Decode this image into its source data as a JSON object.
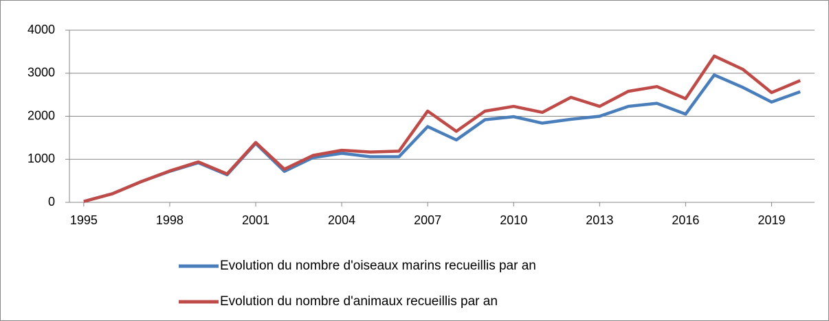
{
  "chart_data": {
    "type": "line",
    "x": [
      1995,
      1996,
      1997,
      1998,
      1999,
      2000,
      2001,
      2002,
      2003,
      2004,
      2005,
      2006,
      2007,
      2008,
      2009,
      2010,
      2011,
      2012,
      2013,
      2014,
      2015,
      2016,
      2017,
      2018,
      2019,
      2020
    ],
    "series": [
      {
        "name": "Evolution du nombre d'oiseaux marins recueillis par an",
        "color": "#4a7ebb",
        "values": [
          20,
          200,
          480,
          720,
          920,
          640,
          1370,
          720,
          1040,
          1140,
          1060,
          1060,
          1760,
          1450,
          1920,
          1990,
          1840,
          1930,
          2000,
          2230,
          2300,
          2050,
          2960,
          2670,
          2330,
          2570
        ]
      },
      {
        "name": "Evolution du nombre d'animaux recueillis par an",
        "color": "#be4b48",
        "values": [
          20,
          200,
          480,
          730,
          940,
          660,
          1390,
          770,
          1090,
          1210,
          1170,
          1190,
          2120,
          1650,
          2120,
          2230,
          2090,
          2440,
          2230,
          2580,
          2690,
          2410,
          3400,
          3090,
          2550,
          2830
        ]
      }
    ],
    "xlim": [
      1994.5,
      2020.5
    ],
    "xticks": [
      1995,
      1998,
      2001,
      2004,
      2007,
      2010,
      2013,
      2016,
      2019
    ],
    "ylim": [
      0,
      4000
    ],
    "yticks": [
      0,
      1000,
      2000,
      3000,
      4000
    ],
    "grid": true,
    "legend": "bottom"
  }
}
